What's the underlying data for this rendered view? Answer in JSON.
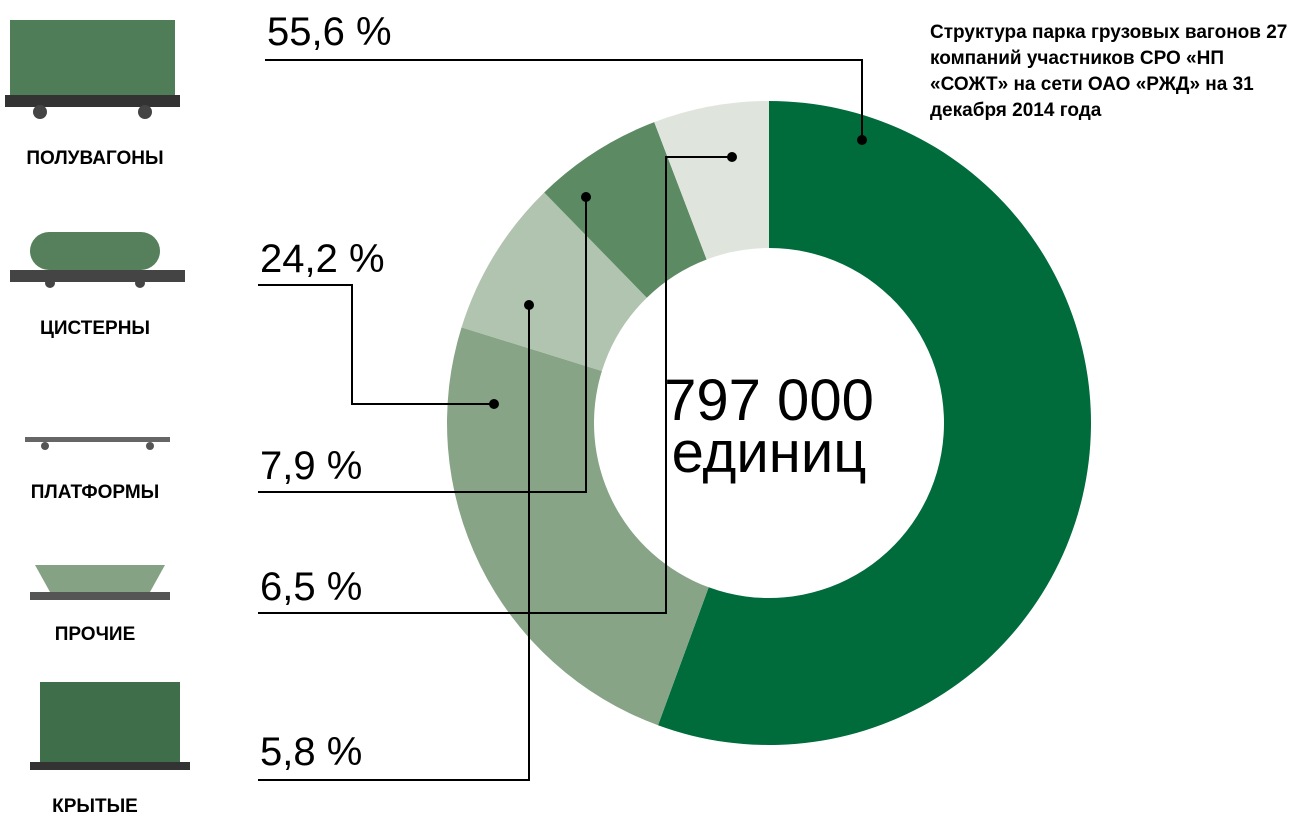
{
  "chart_data": {
    "type": "donut",
    "title": "Структура парка грузовых вагонов 27 компаний участников СРО «НП «СОЖТ» на сети ОАО «РЖД» на 31 декабря 2014 года",
    "categories": [
      "ПОЛУВАГОНЫ",
      "ЦИСТЕРНЫ",
      "ПЛАТФОРМЫ",
      "ПРОЧИЕ",
      "КРЫТЫЕ"
    ],
    "values": [
      55.6,
      24.2,
      7.9,
      6.5,
      5.8
    ],
    "value_labels": [
      "55,6 %",
      "24,2 %",
      "7,9 %",
      "6,5 %",
      "5,8 %"
    ],
    "colors": [
      "#006b3b",
      "#87a486",
      "#b1c4af",
      "#5b8a63",
      "#dfe5dc"
    ],
    "total": 797000,
    "total_label": "797 000",
    "total_unit": "единиц"
  }
}
